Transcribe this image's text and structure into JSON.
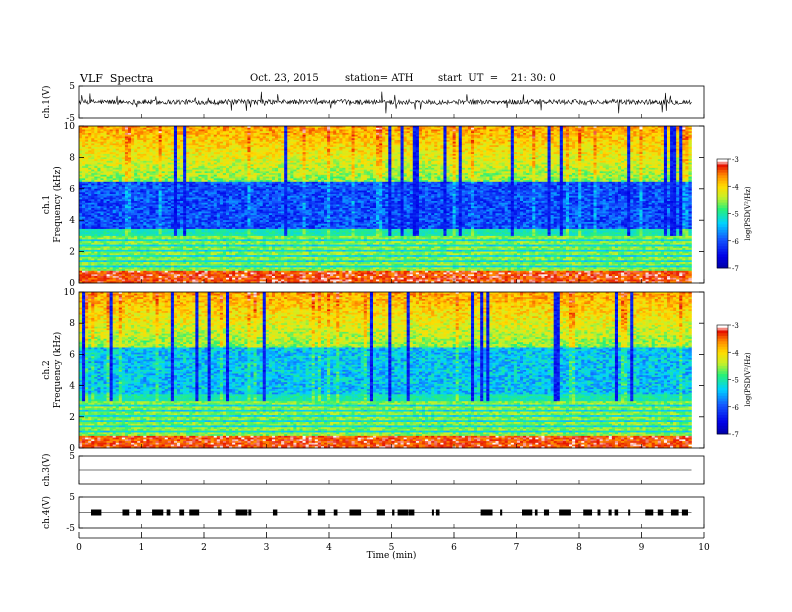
{
  "header": {
    "title": "VLF  Spectra",
    "date": "Oct. 23, 2015",
    "station": "station= ATH",
    "start": "start  UT  =    21: 30: 0"
  },
  "chart_data": [
    {
      "type": "line",
      "panel": "waveform",
      "ylabel": "ch.1(V)",
      "ylim": [
        -5,
        5
      ],
      "yticks": [
        "5",
        "-5"
      ],
      "xlim": [
        0,
        10
      ]
    },
    {
      "type": "heatmap",
      "panel": "spectrogram",
      "ylabel": [
        "ch.1",
        "Frequency  (kHz)"
      ],
      "ylim": [
        0,
        10
      ],
      "yticks": [
        "0",
        "2",
        "4",
        "6",
        "8",
        "10"
      ],
      "xlim": [
        0,
        10
      ],
      "data_end_min": 9.8,
      "colorbar": {
        "label": "log(PSD(V²/Hz)",
        "range": [
          -7,
          -3
        ],
        "ticks": [
          "-3",
          "-4",
          "-5",
          "-6",
          "-7"
        ],
        "colors": [
          "#0000c8",
          "#0a4cff",
          "#00d2ff",
          "#28f07a",
          "#c8f02a",
          "#ffa000",
          "#e60000",
          "#ffffff"
        ]
      },
      "bands_khz": {
        "low_strong": [
          0,
          0.8
        ],
        "banded_mid": [
          0.8,
          3.0
        ],
        "dark_blue": [
          3.4,
          6.4
        ],
        "upper_green_yellow": [
          6.4,
          10
        ]
      }
    },
    {
      "type": "heatmap",
      "panel": "spectrogram",
      "ylabel": [
        "ch.2",
        "Frequency  (kHz)"
      ],
      "ylim": [
        0,
        10
      ],
      "yticks": [
        "0",
        "2",
        "4",
        "6",
        "8",
        "10"
      ],
      "xlim": [
        0,
        10
      ],
      "data_end_min": 9.8,
      "colorbar": {
        "label": "log(PSD(V²/Hz)",
        "range": [
          -7,
          -3
        ],
        "ticks": [
          "-3",
          "-4",
          "-5",
          "-6",
          "-7"
        ]
      }
    },
    {
      "type": "line",
      "panel": "waveform",
      "ylabel": "ch.3(V)",
      "ylim": [
        -5,
        5
      ],
      "yticks": [
        "5"
      ],
      "xlim": [
        0,
        10
      ]
    },
    {
      "type": "line",
      "panel": "waveform",
      "ylabel": "ch.4(V)",
      "ylim": [
        -5,
        5
      ],
      "yticks": [
        "5",
        "-5"
      ],
      "xlim": [
        0,
        10
      ]
    }
  ],
  "xaxis": {
    "label": "Time  (min)",
    "ticks": [
      "0",
      "1",
      "2",
      "3",
      "4",
      "5",
      "6",
      "7",
      "8",
      "9",
      "10"
    ]
  }
}
